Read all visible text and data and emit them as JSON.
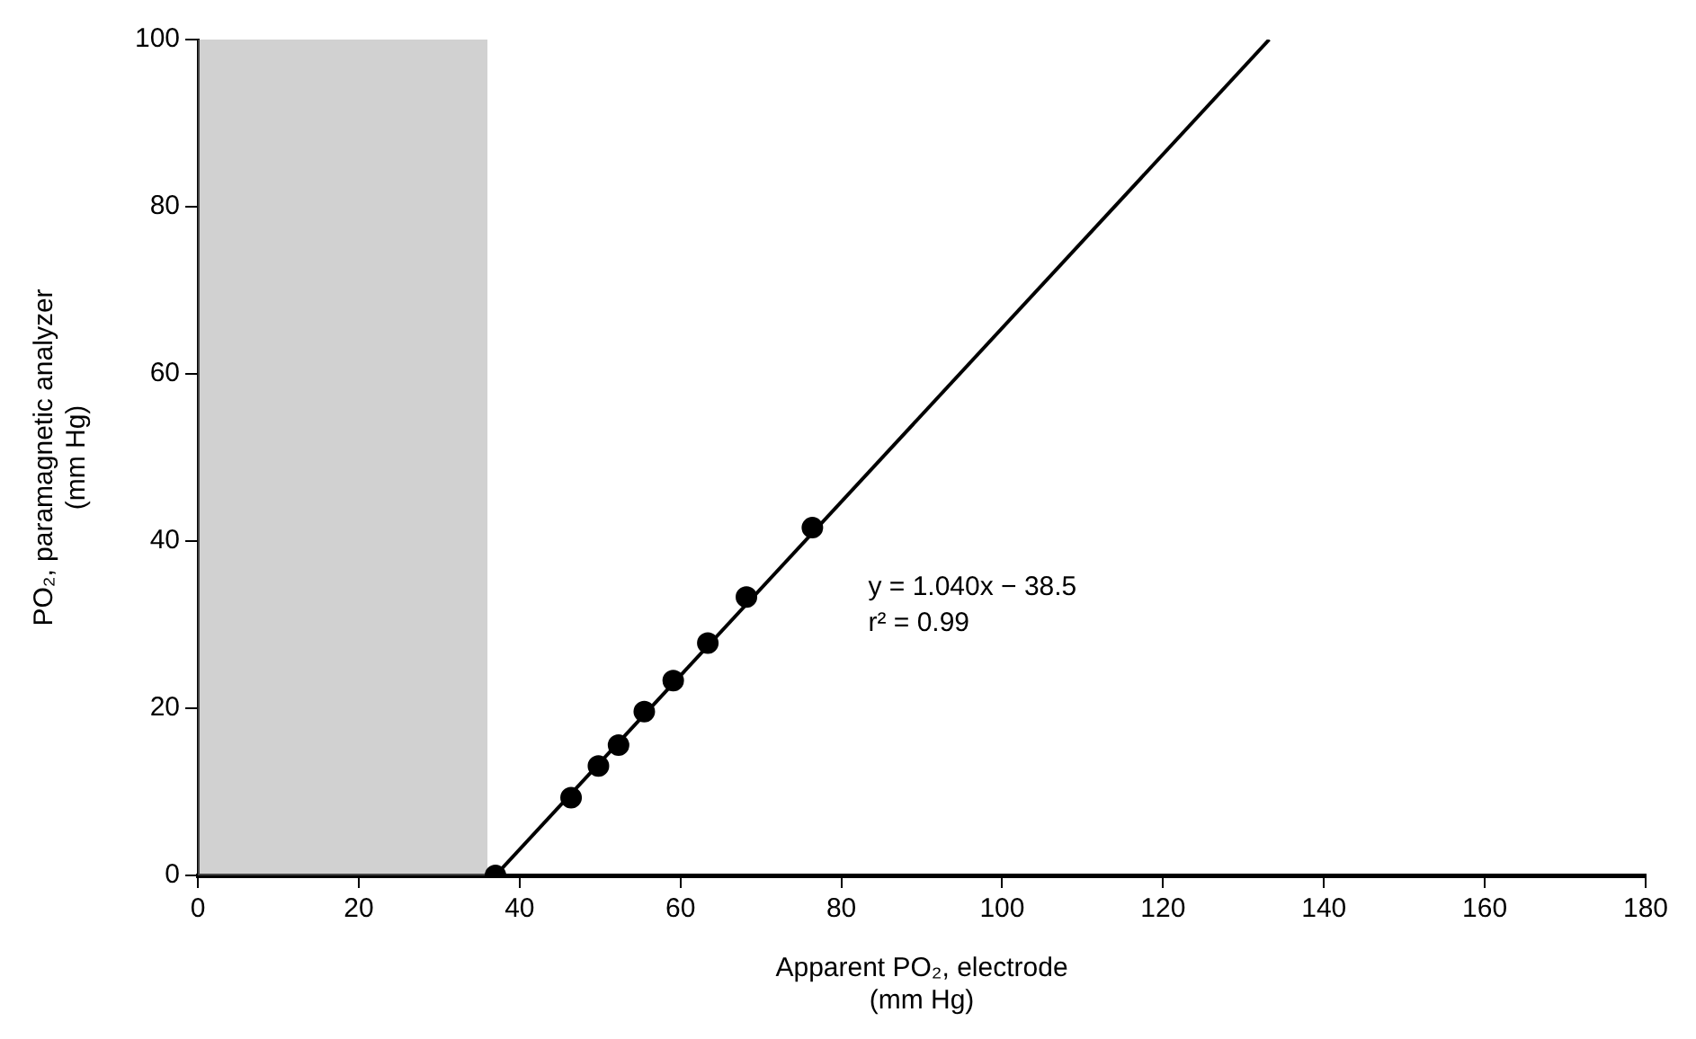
{
  "chart_data": {
    "type": "scatter",
    "xlabel": "Apparent PO₂, electrode\n(mm Hg)",
    "ylabel": "PO₂, paramagnetic analyzer\n(mm Hg)",
    "xlim": [
      0,
      180
    ],
    "xticks": [
      0,
      20,
      40,
      60,
      80,
      100,
      120,
      140,
      160,
      180
    ],
    "ylim": [
      0,
      100
    ],
    "yticks": [
      0,
      20,
      40,
      60,
      80,
      100
    ],
    "grid": false,
    "marker": "circle",
    "series": [
      {
        "color": "#000000",
        "x": [
          37,
          46.4,
          49.8,
          52.3,
          55.5,
          59.1,
          63.4,
          68.2,
          76.4
        ],
        "values": [
          0,
          9.3,
          13.1,
          15.6,
          19.6,
          23.3,
          27.8,
          33.3,
          41.6
        ]
      },
      {
        "type": "line",
        "color": "#000000",
        "marker": "none",
        "x": [
          37,
          133.2
        ],
        "values": [
          0,
          100
        ]
      }
    ],
    "bands": [
      {
        "axis": "x",
        "from": 0,
        "to": 36,
        "color": "#9a9a9a"
      }
    ],
    "annotations": [
      "y = 1.040x − 38.5",
      "r² = 0.99"
    ]
  }
}
